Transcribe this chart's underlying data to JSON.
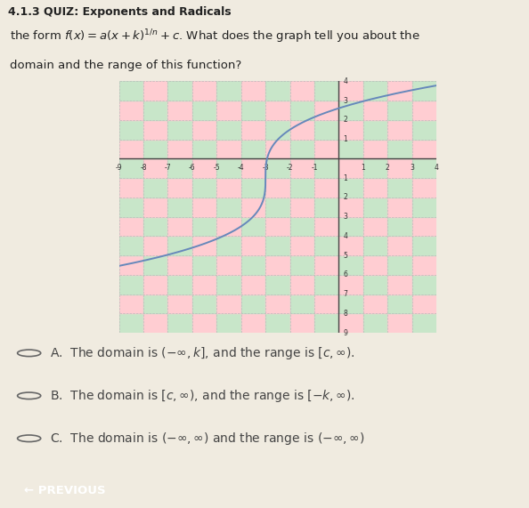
{
  "title": "4.1.3 QUIZ: Exponents and Radicals",
  "bg_color": "#f0ebe0",
  "title_bg": "#d0cec8",
  "grid_color1": "#c8e6c9",
  "grid_color2": "#ffcdd2",
  "axis_color": "#444444",
  "curve_color": "#6688bb",
  "x_min": -9,
  "x_max": 4,
  "y_min": -9,
  "y_max": 4,
  "x_ticks": [
    -9,
    -8,
    -7,
    -6,
    -5,
    -4,
    -3,
    -2,
    -1,
    1,
    2,
    3,
    4
  ],
  "y_ticks_pos": [
    1,
    2,
    3,
    4
  ],
  "y_ticks_neg": [
    1,
    2,
    3,
    4,
    5,
    6,
    7,
    8,
    9
  ],
  "prev_button_color": "#1a7abf",
  "prev_button_text": "← PREVIOUS",
  "curve_a": 2.5,
  "curve_k": 3,
  "curve_c": -1
}
